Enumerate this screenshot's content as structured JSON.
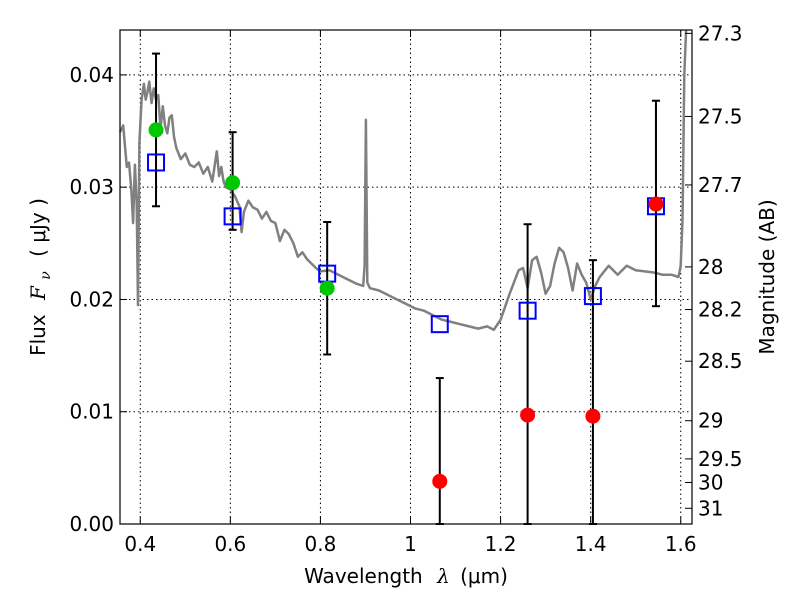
{
  "chart_data": {
    "type": "scatter",
    "xlabel": "Wavelength",
    "xlabel_symbol": "λ",
    "xlabel_unit": "(μm)",
    "ylabel": "Flux",
    "ylabel_symbol": "F",
    "ylabel_subscript": "ν",
    "ylabel_unit": "( μJy )",
    "y2label": "Magnitude (AB)",
    "xlim": [
      0.355,
      1.625
    ],
    "ylim": [
      0.0,
      0.044
    ],
    "grid": true,
    "x_ticks": [
      0.4,
      0.6,
      0.8,
      1.0,
      1.2,
      1.4,
      1.6
    ],
    "x_tick_labels": [
      "0.4",
      "0.6",
      "0.8",
      "1",
      "1.2",
      "1.4",
      "1.6"
    ],
    "y_ticks": [
      0.0,
      0.01,
      0.02,
      0.03,
      0.04
    ],
    "y_tick_labels": [
      "0.00",
      "0.01",
      "0.02",
      "0.03",
      "0.04"
    ],
    "y2_ticks": [
      {
        "label": "27.3",
        "flux": 0.0437
      },
      {
        "label": "27.5",
        "flux": 0.0363
      },
      {
        "label": "27.7",
        "flux": 0.0302
      },
      {
        "label": "28",
        "flux": 0.0229
      },
      {
        "label": "28.2",
        "flux": 0.0191
      },
      {
        "label": "28.5",
        "flux": 0.0145
      },
      {
        "label": "29",
        "flux": 0.0092
      },
      {
        "label": "29.5",
        "flux": 0.0058
      },
      {
        "label": "30",
        "flux": 0.0037
      },
      {
        "label": "31",
        "flux": 0.0014
      }
    ],
    "model_spectrum": {
      "color": "#808080",
      "points": [
        [
          0.355,
          0.0349
        ],
        [
          0.362,
          0.0355
        ],
        [
          0.37,
          0.0318
        ],
        [
          0.375,
          0.0322
        ],
        [
          0.38,
          0.0298
        ],
        [
          0.384,
          0.0268
        ],
        [
          0.388,
          0.032
        ],
        [
          0.392,
          0.0285
        ],
        [
          0.395,
          0.0195
        ],
        [
          0.398,
          0.034
        ],
        [
          0.403,
          0.0378
        ],
        [
          0.408,
          0.0392
        ],
        [
          0.412,
          0.0378
        ],
        [
          0.416,
          0.0385
        ],
        [
          0.42,
          0.0394
        ],
        [
          0.425,
          0.0375
        ],
        [
          0.43,
          0.0388
        ],
        [
          0.435,
          0.0378
        ],
        [
          0.44,
          0.0382
        ],
        [
          0.445,
          0.0352
        ],
        [
          0.45,
          0.0372
        ],
        [
          0.455,
          0.0355
        ],
        [
          0.46,
          0.0348
        ],
        [
          0.465,
          0.0362
        ],
        [
          0.47,
          0.0364
        ],
        [
          0.475,
          0.0345
        ],
        [
          0.48,
          0.0335
        ],
        [
          0.49,
          0.0325
        ],
        [
          0.5,
          0.033
        ],
        [
          0.51,
          0.032
        ],
        [
          0.52,
          0.0318
        ],
        [
          0.53,
          0.0322
        ],
        [
          0.54,
          0.0312
        ],
        [
          0.55,
          0.0318
        ],
        [
          0.56,
          0.0305
        ],
        [
          0.57,
          0.0332
        ],
        [
          0.575,
          0.031
        ],
        [
          0.58,
          0.0318
        ],
        [
          0.585,
          0.0305
        ],
        [
          0.59,
          0.03
        ],
        [
          0.6,
          0.0298
        ],
        [
          0.61,
          0.0292
        ],
        [
          0.62,
          0.0283
        ],
        [
          0.625,
          0.026
        ],
        [
          0.63,
          0.0278
        ],
        [
          0.64,
          0.0288
        ],
        [
          0.65,
          0.0282
        ],
        [
          0.66,
          0.028
        ],
        [
          0.67,
          0.0272
        ],
        [
          0.68,
          0.0278
        ],
        [
          0.69,
          0.027
        ],
        [
          0.7,
          0.0268
        ],
        [
          0.71,
          0.0252
        ],
        [
          0.72,
          0.0262
        ],
        [
          0.73,
          0.0258
        ],
        [
          0.74,
          0.025
        ],
        [
          0.75,
          0.0238
        ],
        [
          0.76,
          0.0242
        ],
        [
          0.77,
          0.0236
        ],
        [
          0.78,
          0.0232
        ],
        [
          0.79,
          0.0228
        ],
        [
          0.8,
          0.0225
        ],
        [
          0.82,
          0.0226
        ],
        [
          0.84,
          0.0222
        ],
        [
          0.86,
          0.0218
        ],
        [
          0.88,
          0.0214
        ],
        [
          0.895,
          0.0212
        ],
        [
          0.898,
          0.023
        ],
        [
          0.901,
          0.036
        ],
        [
          0.904,
          0.0215
        ],
        [
          0.91,
          0.021
        ],
        [
          0.93,
          0.0208
        ],
        [
          0.95,
          0.0204
        ],
        [
          0.97,
          0.02
        ],
        [
          0.99,
          0.0196
        ],
        [
          1.01,
          0.0192
        ],
        [
          1.03,
          0.019
        ],
        [
          1.05,
          0.0186
        ],
        [
          1.07,
          0.0182
        ],
        [
          1.09,
          0.018
        ],
        [
          1.11,
          0.0178
        ],
        [
          1.13,
          0.0176
        ],
        [
          1.15,
          0.0174
        ],
        [
          1.17,
          0.0176
        ],
        [
          1.185,
          0.0173
        ],
        [
          1.2,
          0.0182
        ],
        [
          1.22,
          0.0205
        ],
        [
          1.24,
          0.0226
        ],
        [
          1.25,
          0.0228
        ],
        [
          1.26,
          0.021
        ],
        [
          1.27,
          0.0235
        ],
        [
          1.28,
          0.0238
        ],
        [
          1.29,
          0.0224
        ],
        [
          1.3,
          0.0205
        ],
        [
          1.31,
          0.0212
        ],
        [
          1.32,
          0.0232
        ],
        [
          1.33,
          0.0246
        ],
        [
          1.34,
          0.0242
        ],
        [
          1.35,
          0.0228
        ],
        [
          1.36,
          0.0208
        ],
        [
          1.37,
          0.0232
        ],
        [
          1.38,
          0.0222
        ],
        [
          1.39,
          0.0215
        ],
        [
          1.4,
          0.02
        ],
        [
          1.41,
          0.0212
        ],
        [
          1.42,
          0.022
        ],
        [
          1.43,
          0.0225
        ],
        [
          1.44,
          0.023
        ],
        [
          1.45,
          0.0226
        ],
        [
          1.46,
          0.0222
        ],
        [
          1.48,
          0.023
        ],
        [
          1.5,
          0.0226
        ],
        [
          1.52,
          0.0225
        ],
        [
          1.54,
          0.0224
        ],
        [
          1.56,
          0.0222
        ],
        [
          1.58,
          0.0222
        ],
        [
          1.595,
          0.022
        ],
        [
          1.6,
          0.023
        ],
        [
          1.604,
          0.027
        ],
        [
          1.608,
          0.04
        ],
        [
          1.612,
          0.044
        ]
      ]
    },
    "series": [
      {
        "marker": "open-square",
        "color": "#0000ff",
        "points": [
          {
            "x": 0.435,
            "y": 0.0322
          },
          {
            "x": 0.605,
            "y": 0.0274
          },
          {
            "x": 0.815,
            "y": 0.0223
          },
          {
            "x": 1.065,
            "y": 0.0178
          },
          {
            "x": 1.26,
            "y": 0.019
          },
          {
            "x": 1.405,
            "y": 0.0203
          },
          {
            "x": 1.545,
            "y": 0.0283
          }
        ]
      },
      {
        "marker": "filled-circle",
        "color": "#00c800",
        "points": [
          {
            "x": 0.435,
            "y": 0.0351
          },
          {
            "x": 0.605,
            "y": 0.0304
          },
          {
            "x": 0.815,
            "y": 0.021
          }
        ]
      },
      {
        "marker": "filled-circle",
        "color": "#ff0000",
        "points": [
          {
            "x": 1.065,
            "y": 0.0038
          },
          {
            "x": 1.26,
            "y": 0.0097
          },
          {
            "x": 1.405,
            "y": 0.0096
          },
          {
            "x": 1.545,
            "y": 0.0285
          }
        ]
      }
    ],
    "error_bars": [
      {
        "x": 0.435,
        "low": 0.0283,
        "high": 0.0419
      },
      {
        "x": 0.605,
        "low": 0.0262,
        "high": 0.0349
      },
      {
        "x": 0.815,
        "low": 0.0151,
        "high": 0.0269
      },
      {
        "x": 1.065,
        "low": 0.0,
        "high": 0.013
      },
      {
        "x": 1.26,
        "low": 0.0,
        "high": 0.0267
      },
      {
        "x": 1.405,
        "low": 0.0,
        "high": 0.0235
      },
      {
        "x": 1.545,
        "low": 0.0194,
        "high": 0.0377
      }
    ]
  }
}
